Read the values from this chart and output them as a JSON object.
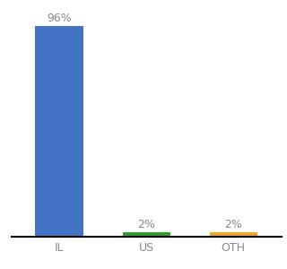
{
  "categories": [
    "IL",
    "US",
    "OTH"
  ],
  "values": [
    96,
    2,
    2
  ],
  "bar_colors": [
    "#4472c4",
    "#2ca02c",
    "#f5a623"
  ],
  "value_labels": [
    "96%",
    "2%",
    "2%"
  ],
  "background_color": "#ffffff",
  "ylim": [
    0,
    104
  ],
  "label_fontsize": 9,
  "tick_fontsize": 9,
  "bar_width": 0.55,
  "label_color": "#888888"
}
